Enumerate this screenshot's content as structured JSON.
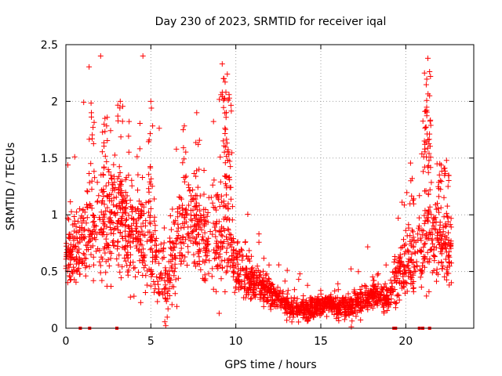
{
  "chart_data": {
    "type": "scatter",
    "title": "Day 230 of 2023, SRMTID for receiver iqal",
    "xlabel": "GPS time / hours",
    "ylabel": "SRMTID / TECUs",
    "xlim": [
      0,
      24
    ],
    "ylim": [
      0,
      2.5
    ],
    "xticks": [
      0,
      5,
      10,
      15,
      20
    ],
    "yticks": [
      0,
      0.5,
      1,
      1.5,
      2,
      2.5
    ],
    "xtick_labels": [
      "0",
      "5",
      "10",
      "15",
      "20"
    ],
    "ytick_labels": [
      "0",
      "0.5",
      "1",
      "1.5",
      "2",
      "2.5"
    ],
    "grid": true,
    "marker": "+",
    "color": "#ff0000",
    "series": [
      {
        "name": "SRMTID",
        "trend": {
          "x": [
            0,
            0.5,
            1,
            1.5,
            2,
            2.5,
            3,
            3.5,
            4,
            4.5,
            5,
            5.5,
            6,
            6.5,
            7,
            7.5,
            8,
            8.5,
            9,
            9.5,
            10,
            10.5,
            11,
            11.5,
            12,
            12.5,
            13,
            13.5,
            14,
            14.5,
            15,
            15.5,
            16,
            16.5,
            17,
            17.5,
            18,
            18.5,
            19,
            19.5,
            20,
            20.5,
            21,
            21.5,
            22,
            22.5
          ],
          "y": [
            0.55,
            0.7,
            0.78,
            0.85,
            0.9,
            0.95,
            0.98,
            0.92,
            0.85,
            0.8,
            0.75,
            0.5,
            0.4,
            0.7,
            0.95,
            0.95,
            0.85,
            0.75,
            0.8,
            0.85,
            0.55,
            0.45,
            0.4,
            0.35,
            0.3,
            0.25,
            0.2,
            0.18,
            0.16,
            0.17,
            0.2,
            0.22,
            0.18,
            0.18,
            0.2,
            0.25,
            0.3,
            0.3,
            0.25,
            0.45,
            0.55,
            0.5,
            0.7,
            0.8,
            0.75,
            0.7
          ]
        },
        "spread": {
          "x": [
            0,
            1,
            2,
            3,
            4,
            5,
            6,
            7,
            8,
            9,
            10,
            11,
            12,
            13,
            14,
            15,
            16,
            17,
            18,
            19,
            20,
            21,
            22,
            22.7
          ],
          "y": [
            0.25,
            0.35,
            0.45,
            0.45,
            0.4,
            0.4,
            0.3,
            0.35,
            0.35,
            0.45,
            0.25,
            0.15,
            0.12,
            0.1,
            0.08,
            0.08,
            0.08,
            0.12,
            0.12,
            0.1,
            0.25,
            0.3,
            0.35,
            0.3
          ]
        },
        "n_points": 2300,
        "x_start": 0,
        "x_end": 22.7,
        "peaks": [
          {
            "x": 1.5,
            "y": 1.9
          },
          {
            "x": 2.3,
            "y": 1.85
          },
          {
            "x": 3.2,
            "y": 2.0
          },
          {
            "x": 5.0,
            "y": 2.0
          },
          {
            "x": 6.9,
            "y": 1.75
          },
          {
            "x": 7.7,
            "y": 1.9
          },
          {
            "x": 9.2,
            "y": 2.33
          },
          {
            "x": 9.3,
            "y": 2.2
          },
          {
            "x": 9.5,
            "y": 2.24
          },
          {
            "x": 9.6,
            "y": 2.06
          },
          {
            "x": 20.3,
            "y": 1.3
          },
          {
            "x": 21.1,
            "y": 2.25
          },
          {
            "x": 21.3,
            "y": 2.38
          },
          {
            "x": 21.4,
            "y": 2.05
          },
          {
            "x": 21.2,
            "y": 1.64
          },
          {
            "x": 22.0,
            "y": 1.45
          },
          {
            "x": 22.4,
            "y": 1.48
          }
        ],
        "zero_points": [
          0.85,
          1.4,
          3.0,
          19.3,
          19.4,
          20.8,
          21.0,
          21.4
        ]
      }
    ]
  }
}
